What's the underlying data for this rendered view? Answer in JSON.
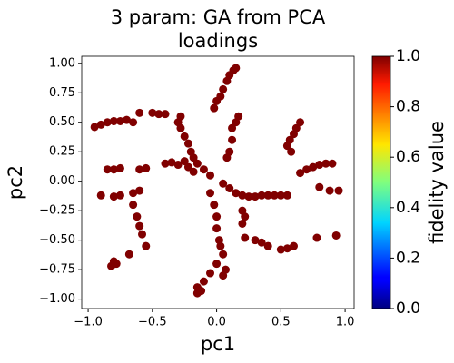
{
  "chart_data": {
    "type": "scatter",
    "title": [
      "3 param:  GA from PCA",
      "loadings"
    ],
    "x_label": "pc1",
    "y_label": "pc2",
    "xlim": [
      -1.05,
      1.07
    ],
    "ylim": [
      -1.08,
      1.06
    ],
    "xticks": [
      {
        "value": -1.0,
        "label": "−1.0"
      },
      {
        "value": -0.5,
        "label": "−0.5"
      },
      {
        "value": 0,
        "label": "0.0"
      },
      {
        "value": 0.5,
        "label": "0.5"
      },
      {
        "value": 1.0,
        "label": "1.0"
      }
    ],
    "yticks": [
      {
        "value": -1.0,
        "label": "−1.00"
      },
      {
        "value": -0.75,
        "label": "−0.75"
      },
      {
        "value": -0.5,
        "label": "−0.50"
      },
      {
        "value": -0.25,
        "label": "−0.25"
      },
      {
        "value": 0,
        "label": "0.00"
      },
      {
        "value": 0.25,
        "label": "0.25"
      },
      {
        "value": 0.5,
        "label": "0.50"
      },
      {
        "value": 0.75,
        "label": "0.75"
      },
      {
        "value": 1.0,
        "label": "1.00"
      }
    ],
    "colorbar": {
      "label": "fidelity value",
      "lim": [
        0,
        1
      ],
      "ticks": [
        {
          "value": 0,
          "label": "0.0"
        },
        {
          "value": 0.2,
          "label": "0.2"
        },
        {
          "value": 0.4,
          "label": "0.4"
        },
        {
          "value": 0.6,
          "label": "0.6"
        },
        {
          "value": 0.8,
          "label": "0.8"
        },
        {
          "value": 1.0,
          "label": "1.0"
        }
      ]
    },
    "series": [
      {
        "color": "#800000",
        "x": [
          -0.95,
          -0.9,
          -0.85,
          -0.8,
          -0.75,
          -0.7,
          -0.65,
          -0.6,
          -0.5,
          -0.45,
          -0.4,
          -0.02,
          0.0,
          0.03,
          0.05,
          0.08,
          0.1,
          0.13,
          0.15,
          -0.28,
          -0.25,
          -0.22,
          -0.2,
          -0.18,
          -0.15,
          -0.1,
          -0.05,
          -0.18,
          -0.22,
          -0.25,
          -0.3,
          -0.28,
          -0.85,
          -0.8,
          -0.75,
          -0.6,
          -0.55,
          -0.4,
          -0.35,
          -0.3,
          -0.9,
          -0.8,
          -0.75,
          -0.65,
          -0.6,
          -0.65,
          -0.62,
          -0.6,
          -0.58,
          -0.55,
          -0.68,
          -0.78,
          -0.8,
          -0.82,
          0.0,
          0.0,
          0.02,
          0.03,
          0.05,
          0.0,
          -0.05,
          -0.1,
          -0.15,
          -0.15,
          -0.12,
          0.07,
          0.05,
          -0.05,
          -0.02,
          0.05,
          0.1,
          0.15,
          0.2,
          0.25,
          0.3,
          0.35,
          0.4,
          0.45,
          0.5,
          0.55,
          0.2,
          0.22,
          0.2,
          0.22,
          0.3,
          0.35,
          0.4,
          0.5,
          0.55,
          0.6,
          0.78,
          0.93,
          0.55,
          0.57,
          0.6,
          0.62,
          0.65,
          0.58,
          0.65,
          0.7,
          0.75,
          0.8,
          0.85,
          0.9,
          0.8,
          0.88,
          0.95,
          0.15,
          0.17,
          0.12,
          0.12,
          0.1,
          0.08
        ],
        "values": [
          0.46,
          0.48,
          0.5,
          0.51,
          0.51,
          0.52,
          0.5,
          0.58,
          0.58,
          0.57,
          0.57,
          0.62,
          0.68,
          0.72,
          0.78,
          0.85,
          0.9,
          0.94,
          0.96,
          0.45,
          0.38,
          0.32,
          0.25,
          0.2,
          0.15,
          0.1,
          0.05,
          0.08,
          0.12,
          0.17,
          0.5,
          0.55,
          0.1,
          0.1,
          0.11,
          0.1,
          0.11,
          0.15,
          0.16,
          0.14,
          -0.12,
          -0.13,
          -0.12,
          -0.1,
          -0.08,
          -0.2,
          -0.3,
          -0.38,
          -0.45,
          -0.55,
          -0.62,
          -0.7,
          -0.68,
          -0.72,
          -0.3,
          -0.4,
          -0.5,
          -0.55,
          -0.62,
          -0.7,
          -0.78,
          -0.85,
          -0.9,
          -0.95,
          -0.93,
          -0.75,
          -0.8,
          -0.1,
          -0.2,
          -0.02,
          -0.06,
          -0.1,
          -0.12,
          -0.13,
          -0.13,
          -0.12,
          -0.12,
          -0.12,
          -0.12,
          -0.12,
          -0.25,
          -0.3,
          -0.36,
          -0.48,
          -0.5,
          -0.52,
          -0.55,
          -0.58,
          -0.57,
          -0.55,
          -0.48,
          -0.46,
          0.3,
          0.35,
          0.4,
          0.45,
          0.5,
          0.25,
          0.07,
          0.1,
          0.12,
          0.14,
          0.15,
          0.15,
          -0.05,
          -0.08,
          -0.08,
          0.5,
          0.55,
          0.45,
          0.35,
          0.25,
          0.2
        ]
      }
    ]
  }
}
